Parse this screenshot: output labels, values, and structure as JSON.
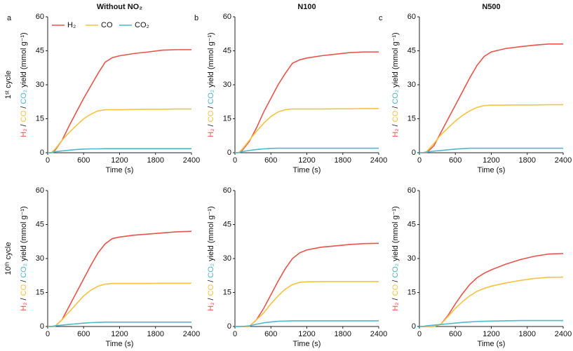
{
  "figure": {
    "column_titles": [
      "Without NO₂",
      "N100",
      "N500"
    ],
    "panel_letters": [
      "a",
      "b",
      "c"
    ],
    "row_labels": [
      "1ˢᵗ cycle",
      "10ᵗʰ cycle"
    ],
    "x_label": "Time (s)",
    "y_label": [
      {
        "text": "H₂",
        "color": "#e8534a"
      },
      {
        "text": " / "
      },
      {
        "text": "CO",
        "color": "#f5c242"
      },
      {
        "text": " / "
      },
      {
        "text": "CO₂",
        "color": "#4fb7cf"
      },
      {
        "text": " yield (mmol g⁻¹)"
      }
    ]
  },
  "chart_data": [
    {
      "type": "line",
      "legend": "upper left",
      "x": [
        0,
        60,
        120,
        240,
        360,
        480,
        600,
        720,
        840,
        960,
        1080,
        1200,
        1440,
        1680,
        1920,
        2160,
        2400
      ],
      "xlim": [
        0,
        2400
      ],
      "xticks": [
        0,
        600,
        1200,
        1800,
        2400
      ],
      "ylim": [
        0,
        60
      ],
      "yticks": [
        0,
        15,
        30,
        45,
        60
      ],
      "series": [
        {
          "name": "H₂",
          "color": "#e8534a",
          "values": [
            0,
            0,
            1,
            5.5,
            12,
            18,
            24,
            29.5,
            35,
            40,
            42,
            42.8,
            43.8,
            44.5,
            45.3,
            45.5,
            45.5
          ]
        },
        {
          "name": "CO",
          "color": "#f5c242",
          "values": [
            0,
            0,
            1.5,
            5.5,
            9,
            12,
            15,
            17,
            18.5,
            19,
            19,
            19,
            19.1,
            19.2,
            19.2,
            19.3,
            19.3
          ]
        },
        {
          "name": "CO₂",
          "color": "#4fb7cf",
          "values": [
            0,
            0,
            0.4,
            0.8,
            1.1,
            1.4,
            1.6,
            1.7,
            1.7,
            1.8,
            1.8,
            1.8,
            1.8,
            1.8,
            1.8,
            1.8,
            1.8
          ]
        }
      ]
    },
    {
      "type": "line",
      "x": [
        0,
        60,
        120,
        240,
        360,
        480,
        600,
        720,
        840,
        960,
        1080,
        1200,
        1440,
        1680,
        1920,
        2160,
        2400
      ],
      "xlim": [
        0,
        2400
      ],
      "xticks": [
        0,
        600,
        1200,
        1800,
        2400
      ],
      "ylim": [
        0,
        60
      ],
      "yticks": [
        0,
        15,
        30,
        45,
        60
      ],
      "series": [
        {
          "name": "H₂",
          "color": "#e8534a",
          "values": [
            0,
            0,
            1,
            5,
            11,
            18,
            24,
            30,
            35,
            39.5,
            41,
            41.8,
            42.8,
            43.5,
            44.2,
            44.5,
            44.5
          ]
        },
        {
          "name": "CO",
          "color": "#f5c242",
          "values": [
            0,
            0,
            1.5,
            5.5,
            9.5,
            13,
            16,
            18,
            19,
            19.3,
            19.3,
            19.3,
            19.3,
            19.4,
            19.4,
            19.5,
            19.5
          ]
        },
        {
          "name": "CO₂",
          "color": "#4fb7cf",
          "values": [
            0,
            0,
            0.5,
            1,
            1.4,
            1.7,
            1.9,
            2,
            2,
            2,
            2,
            2,
            2,
            2,
            2,
            2,
            2
          ]
        }
      ]
    },
    {
      "type": "line",
      "x": [
        0,
        60,
        120,
        240,
        360,
        480,
        600,
        720,
        840,
        960,
        1080,
        1200,
        1440,
        1680,
        1920,
        2160,
        2400
      ],
      "xlim": [
        0,
        2400
      ],
      "xticks": [
        0,
        600,
        1200,
        1800,
        2400
      ],
      "ylim": [
        0,
        60
      ],
      "yticks": [
        0,
        15,
        30,
        45,
        60
      ],
      "series": [
        {
          "name": "H₂",
          "color": "#e8534a",
          "values": [
            0,
            0,
            0,
            3,
            9,
            15,
            21,
            27,
            33,
            38.5,
            42.5,
            44.5,
            46,
            46.8,
            47.5,
            48,
            48
          ]
        },
        {
          "name": "CO",
          "color": "#f5c242",
          "values": [
            0,
            0,
            0.5,
            4,
            8,
            11,
            14,
            16.5,
            18.5,
            20,
            20.8,
            21,
            21,
            21.1,
            21.1,
            21.2,
            21.2
          ]
        },
        {
          "name": "CO₂",
          "color": "#4fb7cf",
          "values": [
            0,
            0,
            0.3,
            0.7,
            1,
            1.3,
            1.6,
            1.8,
            2,
            2,
            2,
            2,
            2,
            2,
            2,
            2,
            2
          ]
        }
      ]
    },
    {
      "type": "line",
      "x": [
        0,
        60,
        120,
        240,
        360,
        480,
        600,
        720,
        840,
        960,
        1080,
        1200,
        1440,
        1680,
        1920,
        2160,
        2400
      ],
      "xlim": [
        0,
        2400
      ],
      "xticks": [
        0,
        600,
        1200,
        1800,
        2400
      ],
      "ylim": [
        0,
        60
      ],
      "yticks": [
        0,
        15,
        30,
        45,
        60
      ],
      "series": [
        {
          "name": "H₂",
          "color": "#e8534a",
          "values": [
            0,
            0,
            0,
            3,
            9,
            15,
            21,
            27,
            32.5,
            36.5,
            38.8,
            39.5,
            40.3,
            40.8,
            41.3,
            41.8,
            42
          ]
        },
        {
          "name": "CO",
          "color": "#f5c242",
          "values": [
            0,
            0,
            0,
            3,
            6.5,
            10,
            13.5,
            16,
            17.8,
            18.7,
            19,
            19,
            19,
            19,
            19.1,
            19.1,
            19.1
          ]
        },
        {
          "name": "CO₂",
          "color": "#4fb7cf",
          "values": [
            0,
            0,
            0.3,
            0.6,
            0.9,
            1.2,
            1.5,
            1.7,
            1.8,
            1.9,
            1.9,
            1.9,
            1.9,
            1.9,
            1.9,
            1.9,
            1.9
          ]
        }
      ]
    },
    {
      "type": "line",
      "x": [
        0,
        60,
        120,
        240,
        360,
        480,
        600,
        720,
        840,
        960,
        1080,
        1200,
        1440,
        1680,
        1920,
        2160,
        2400
      ],
      "xlim": [
        0,
        2400
      ],
      "xticks": [
        0,
        600,
        1200,
        1800,
        2400
      ],
      "ylim": [
        0,
        60
      ],
      "yticks": [
        0,
        15,
        30,
        45,
        60
      ],
      "series": [
        {
          "name": "H₂",
          "color": "#e8534a",
          "values": [
            0,
            0,
            0,
            0,
            3,
            8,
            14,
            20,
            25.5,
            30,
            32.5,
            33.8,
            35,
            35.6,
            36.2,
            36.6,
            36.7
          ]
        },
        {
          "name": "CO",
          "color": "#f5c242",
          "values": [
            0,
            0,
            0,
            0,
            3,
            6,
            10,
            13.5,
            16.5,
            18.5,
            19.5,
            19.7,
            19.8,
            19.8,
            19.8,
            19.8,
            19.8
          ]
        },
        {
          "name": "CO₂",
          "color": "#4fb7cf",
          "values": [
            0,
            0,
            0,
            0.3,
            1,
            1.6,
            2,
            2.3,
            2.4,
            2.5,
            2.5,
            2.5,
            2.5,
            2.5,
            2.5,
            2.5,
            2.5
          ]
        }
      ]
    },
    {
      "type": "line",
      "x": [
        0,
        60,
        120,
        240,
        360,
        480,
        600,
        720,
        840,
        960,
        1080,
        1200,
        1440,
        1680,
        1920,
        2160,
        2400
      ],
      "xlim": [
        0,
        2400
      ],
      "xticks": [
        0,
        600,
        1200,
        1800,
        2400
      ],
      "ylim": [
        0,
        60
      ],
      "yticks": [
        0,
        15,
        30,
        45,
        60
      ],
      "series": [
        {
          "name": "H₂",
          "color": "#e8534a",
          "values": [
            0,
            0,
            0,
            0,
            1,
            5,
            10,
            14.5,
            18.5,
            21.5,
            23.5,
            25,
            27.5,
            29.5,
            31,
            32,
            32.2
          ]
        },
        {
          "name": "CO",
          "color": "#f5c242",
          "values": [
            0,
            0,
            0,
            0,
            1,
            4.5,
            8,
            11,
            13.5,
            15.5,
            16.8,
            17.8,
            19.2,
            20.3,
            21.2,
            21.7,
            21.8
          ]
        },
        {
          "name": "CO₂",
          "color": "#4fb7cf",
          "values": [
            0,
            0,
            0.3,
            0.6,
            0.9,
            1.2,
            1.5,
            1.8,
            2,
            2.2,
            2.3,
            2.4,
            2.5,
            2.6,
            2.6,
            2.6,
            2.6
          ]
        }
      ]
    }
  ]
}
